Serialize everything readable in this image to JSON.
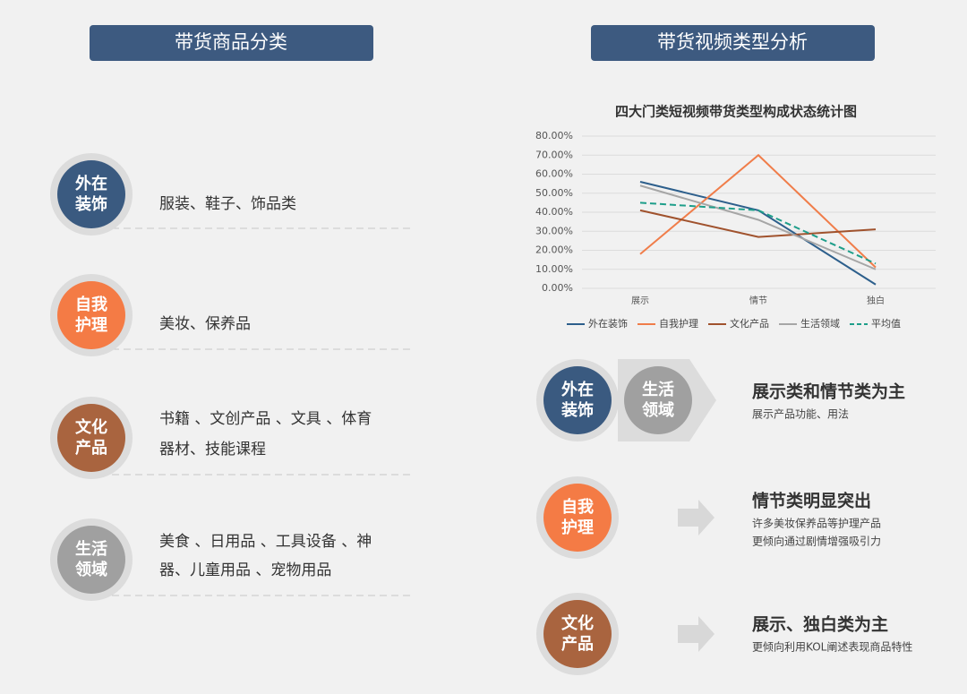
{
  "left": {
    "header": "带货商品分类",
    "items": [
      {
        "label": [
          "外在",
          "装饰"
        ],
        "text": [
          "服装、鞋子、饰品类"
        ]
      },
      {
        "label": [
          "自我",
          "护理"
        ],
        "text": [
          "美妆、保养品"
        ]
      },
      {
        "label": [
          "文化",
          "产品"
        ],
        "text": [
          "书籍 、文创产品 、文具 、体育",
          "器材、技能课程"
        ]
      },
      {
        "label": [
          "生活",
          "领域"
        ],
        "text": [
          "美食 、日用品 、工具设备 、神",
          "器、儿童用品 、宠物用品"
        ]
      }
    ]
  },
  "right": {
    "header": "带货视频类型分析",
    "findings": [
      {
        "badges": [
          [
            "外在",
            "装饰"
          ],
          [
            "生活",
            "领域"
          ]
        ],
        "title": "展示类和情节类为主",
        "notes": [
          "展示产品功能、用法"
        ]
      },
      {
        "badges": [
          [
            "自我",
            "护理"
          ]
        ],
        "title": "情节类明显突出",
        "notes": [
          "许多美妆保养品等护理产品",
          "更倾向通过剧情增强吸引力"
        ]
      },
      {
        "badges": [
          [
            "文化",
            "产品"
          ]
        ],
        "title": "展示、独白类为主",
        "notes": [
          "更倾向利用KOL阐述表现商品特性"
        ]
      }
    ]
  },
  "chart_data": {
    "type": "line",
    "title": "四大门类短视频带货类型构成状态统计图",
    "categories": [
      "展示",
      "情节",
      "独白"
    ],
    "series": [
      {
        "name": "外在装饰",
        "color": "#2d5f8c",
        "values": [
          56,
          41,
          2
        ]
      },
      {
        "name": "自我护理",
        "color": "#f07d4a",
        "values": [
          18,
          70,
          11
        ]
      },
      {
        "name": "文化产品",
        "color": "#a0522d",
        "values": [
          41,
          27,
          31
        ]
      },
      {
        "name": "生活领域",
        "color": "#a6a6a6",
        "values": [
          54,
          36,
          10
        ]
      },
      {
        "name": "平均值",
        "color": "#1e9e8a",
        "dashed": true,
        "values": [
          45,
          41,
          13
        ]
      }
    ],
    "ylim": [
      0,
      80
    ],
    "yticks": [
      {
        "value": 0,
        "label": "0.00%"
      },
      {
        "value": 10,
        "label": "10.00%"
      },
      {
        "value": 20,
        "label": "20.00%"
      },
      {
        "value": 30,
        "label": "30.00%"
      },
      {
        "value": 40,
        "label": "40.00%"
      },
      {
        "value": 50,
        "label": "50.00%"
      },
      {
        "value": 60,
        "label": "60.00%"
      },
      {
        "value": 70,
        "label": "70.00%"
      },
      {
        "value": 80,
        "label": "80.00%"
      }
    ],
    "grid": true,
    "legend": "bottom"
  }
}
